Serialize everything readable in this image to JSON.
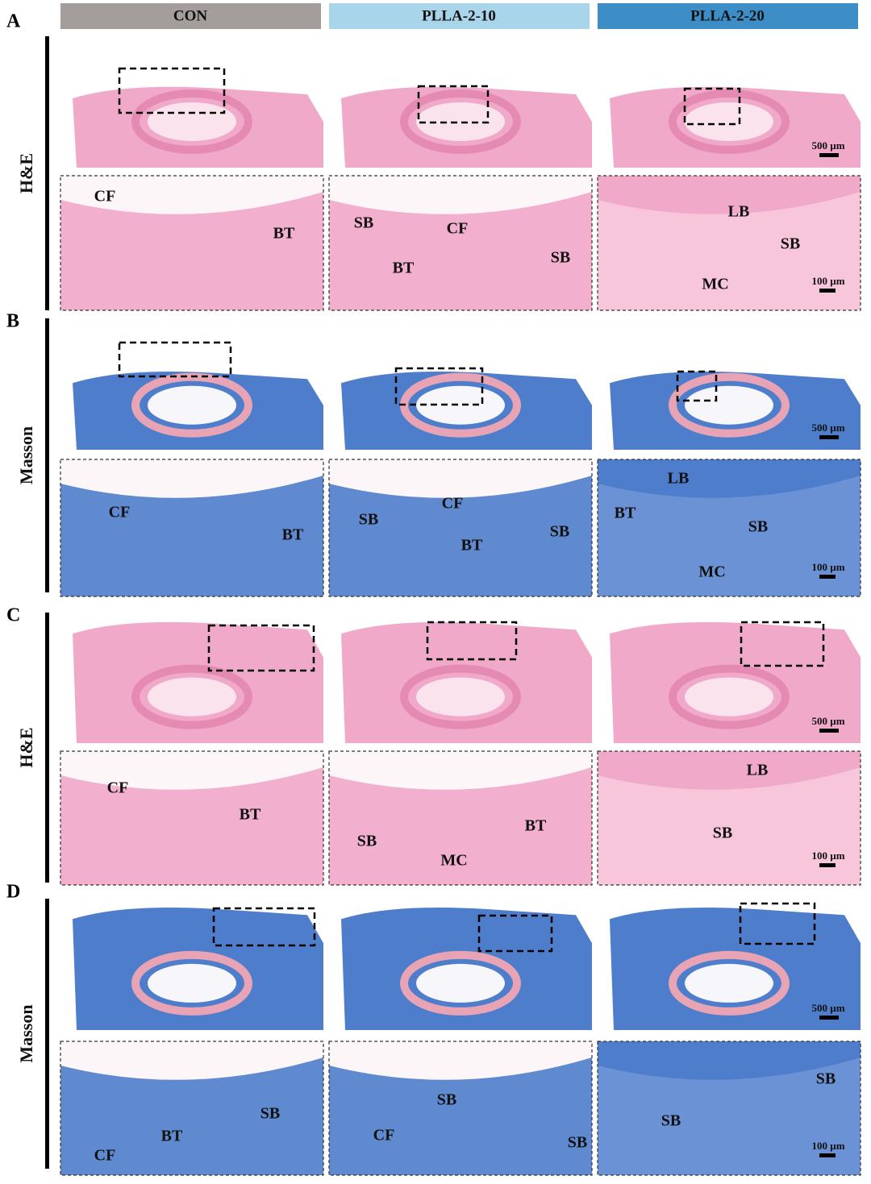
{
  "headers": [
    "CON",
    "PLLA-2-10",
    "PLLA-2-20"
  ],
  "panels": [
    {
      "label": "A",
      "stain": "H&E",
      "scale_overview": "500 µm",
      "scale_zoom": "100 µm",
      "zoom_labels": [
        [
          "CF",
          "BT"
        ],
        [
          "SB",
          "CF",
          "BT",
          "SB"
        ],
        [
          "LB",
          "SB",
          "MC"
        ]
      ]
    },
    {
      "label": "B",
      "stain": "Masson",
      "scale_overview": "500 µm",
      "scale_zoom": "100 µm",
      "zoom_labels": [
        [
          "CF",
          "BT"
        ],
        [
          "SB",
          "CF",
          "BT",
          "SB"
        ],
        [
          "LB",
          "BT",
          "SB",
          "MC"
        ]
      ]
    },
    {
      "label": "C",
      "stain": "H&E",
      "scale_overview": "500 µm",
      "scale_zoom": "100 µm",
      "zoom_labels": [
        [
          "CF",
          "BT"
        ],
        [
          "SB",
          "BT",
          "MC"
        ],
        [
          "LB",
          "SB"
        ]
      ]
    },
    {
      "label": "D",
      "stain": "Masson",
      "scale_overview": "500 µm",
      "scale_zoom": "100 µm",
      "zoom_labels": [
        [
          "SB",
          "BT",
          "CF"
        ],
        [
          "SB",
          "CF",
          "SB"
        ],
        [
          "SB",
          "SB"
        ]
      ]
    }
  ]
}
